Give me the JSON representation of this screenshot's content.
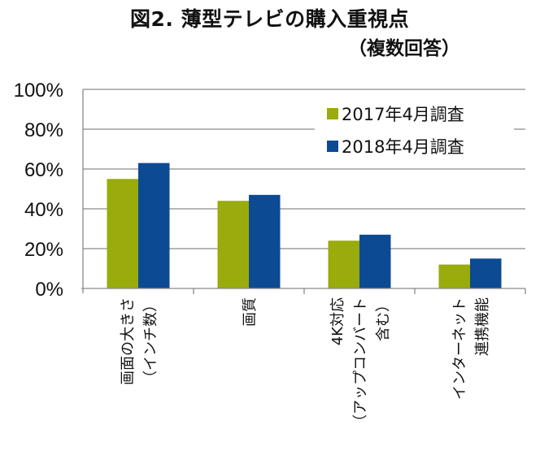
{
  "chart_data": {
    "type": "bar",
    "title": "図2. 薄型テレビの購入重視点",
    "subtitle": "（複数回答）",
    "xlabel": "",
    "ylabel": "",
    "ylim": [
      0,
      100
    ],
    "yticks": [
      "0%",
      "20%",
      "40%",
      "60%",
      "80%",
      "100%"
    ],
    "ytick_values": [
      0,
      20,
      40,
      60,
      80,
      100
    ],
    "grid": true,
    "legend_position": "top-right",
    "categories": [
      {
        "lines": [
          "画面の大きさ",
          "（インチ数）"
        ]
      },
      {
        "lines": [
          "画質"
        ]
      },
      {
        "lines": [
          "4K対応",
          "（アップコンバート",
          "含む）"
        ]
      },
      {
        "lines": [
          "インターネット",
          "連携機能"
        ]
      }
    ],
    "series": [
      {
        "name": "2017年4月調査",
        "color": "#9aab0c",
        "values": [
          55,
          44,
          24,
          12
        ]
      },
      {
        "name": "2018年4月調査",
        "color": "#0c4a94",
        "values": [
          63,
          47,
          27,
          15
        ]
      }
    ]
  }
}
